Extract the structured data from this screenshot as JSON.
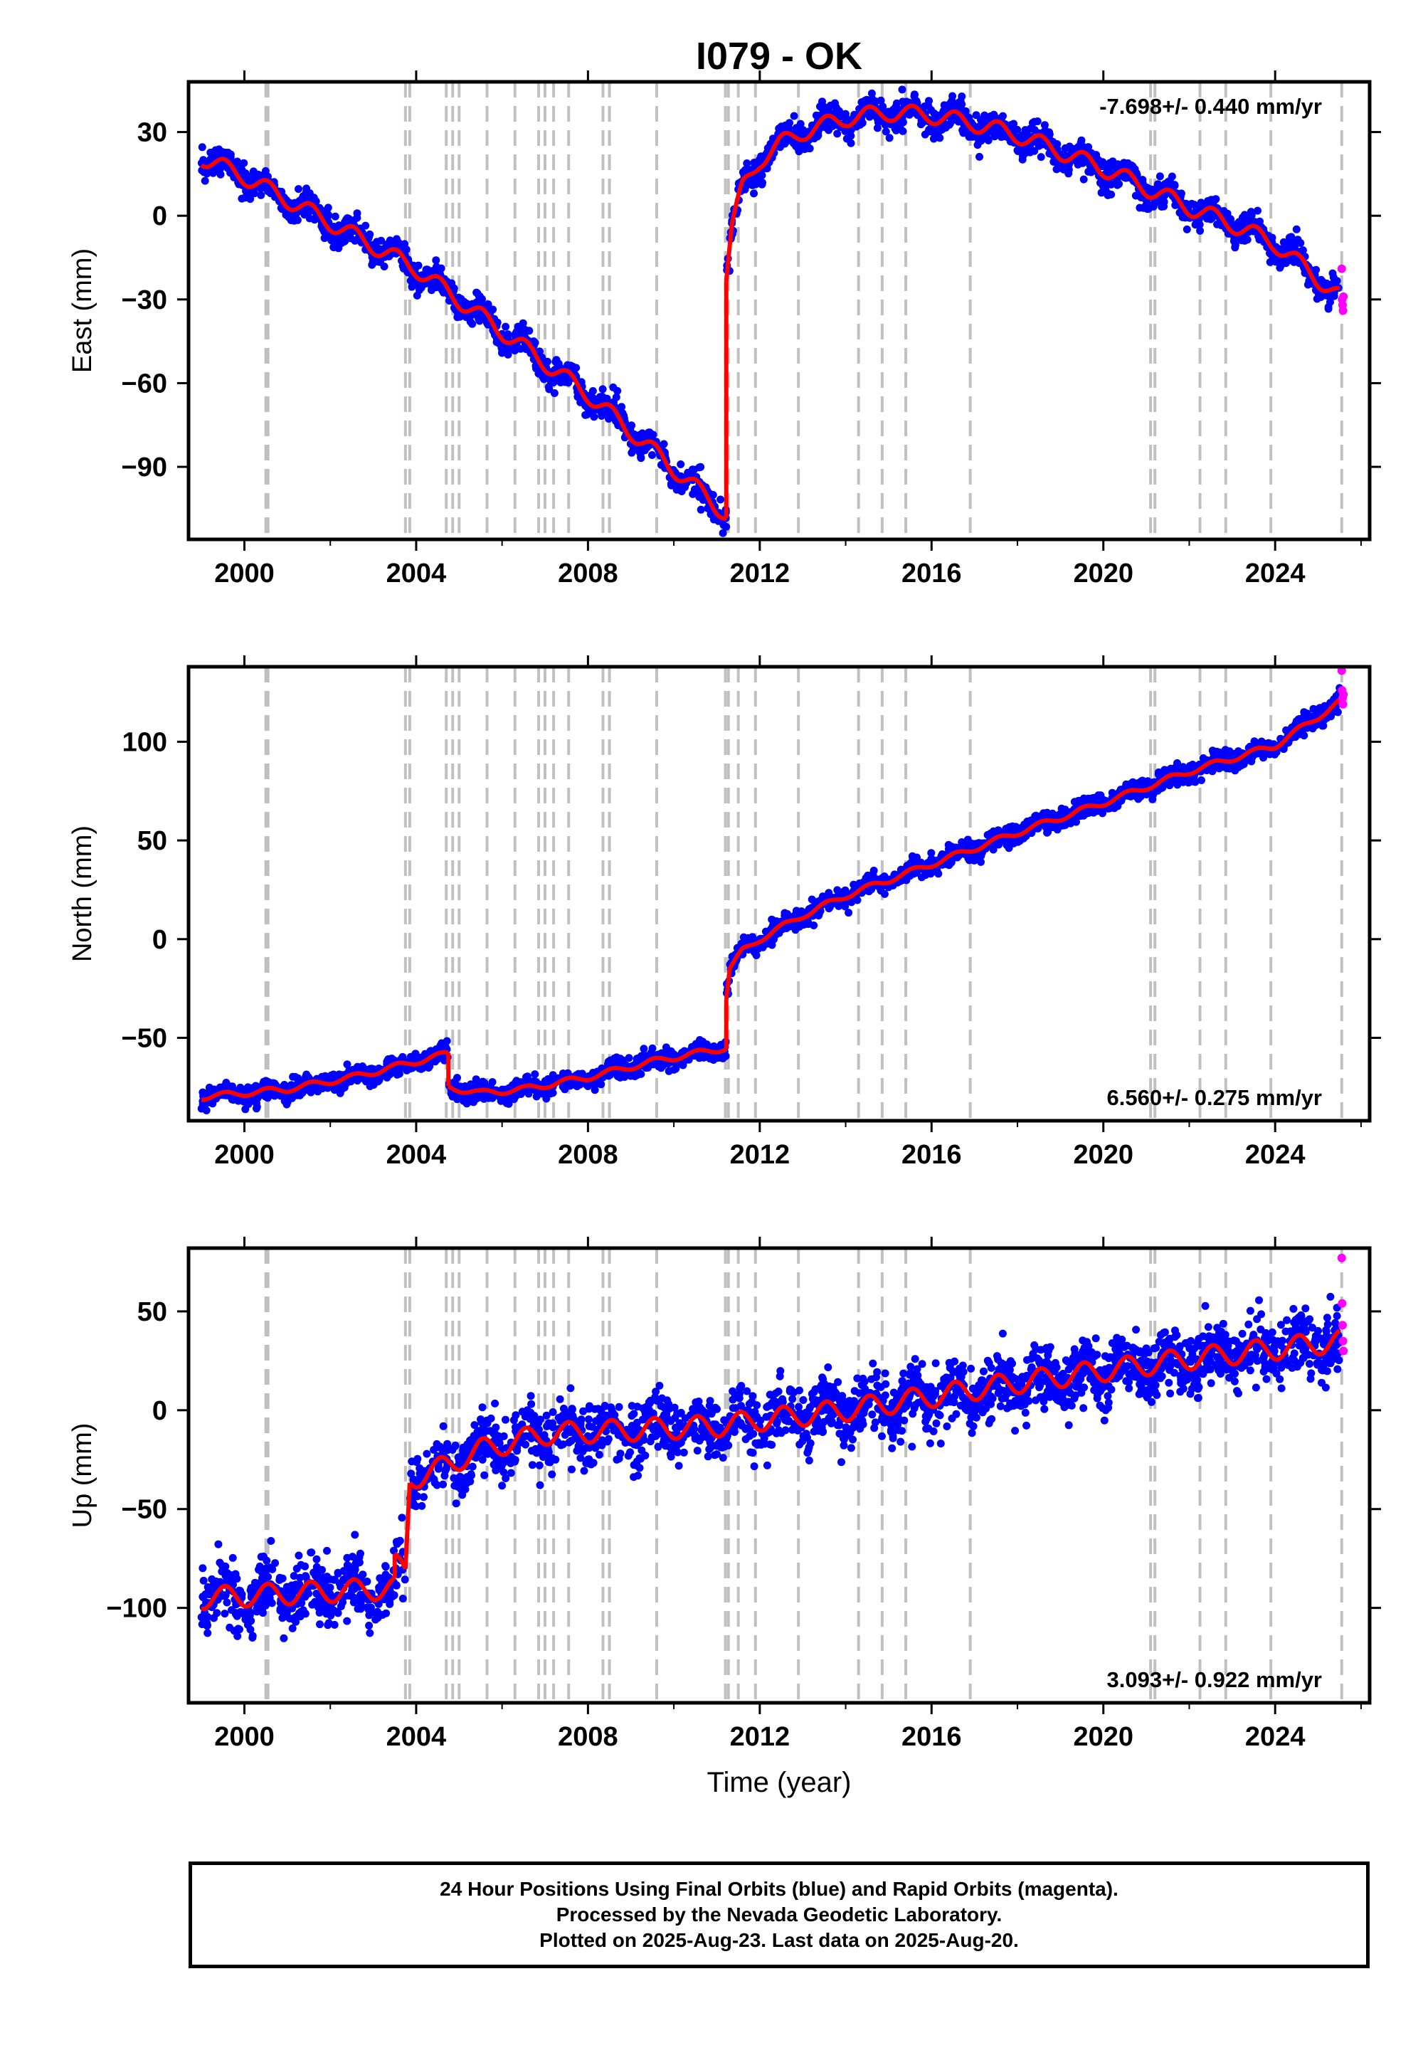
{
  "station_title": "I079 - OK",
  "colors": {
    "final_orbits": "#0000ff",
    "rapid_orbits": "#ff00ff",
    "model_fit": "#ff0000",
    "event_lines": "#c0c0c0",
    "frame": "#000000"
  },
  "footer": {
    "line1": "24 Hour Positions Using Final Orbits (blue) and Rapid Orbits (magenta).",
    "line2": "Processed by the Nevada Geodetic Laboratory.",
    "line3": "Plotted on 2025-Aug-23. Last data on 2025-Aug-20."
  },
  "chart_data": [
    {
      "type": "scatter",
      "component": "East",
      "ylabel": "East (mm)",
      "xlabel": "",
      "xlim": [
        1998.7,
        2026.2
      ],
      "ylim": [
        -116,
        48
      ],
      "xticks": [
        2000,
        2004,
        2008,
        2012,
        2016,
        2020,
        2024
      ],
      "yticks": [
        30,
        0,
        -30,
        -60,
        -90
      ],
      "ytick_labels": [
        "30",
        "0",
        "−30",
        "−60",
        "−90"
      ],
      "rate_label": "-7.698+/- 0.440 mm/yr",
      "rate_label_position": "top-right",
      "event_years": [
        2000.5,
        2000.55,
        2003.75,
        2003.85,
        2004.7,
        2004.85,
        2005.0,
        2005.65,
        2006.3,
        2006.85,
        2007.0,
        2007.2,
        2007.55,
        2008.35,
        2008.5,
        2009.6,
        2011.2,
        2011.27,
        2011.5,
        2011.9,
        2012.9,
        2014.3,
        2014.85,
        2015.4,
        2016.9,
        2021.1,
        2021.2,
        2022.25,
        2022.85,
        2023.9,
        2025.55
      ],
      "series": [
        {
          "name": "Final Orbits",
          "color": "#0000ff",
          "model": {
            "segments": [
              {
                "x": [
                  1999.0,
                  2000.0,
                  2004.0,
                  2008.0,
                  2011.22
                ],
                "y": [
                  21,
                  14,
                  -19,
                  -64,
                  -107
                ]
              },
              {
                "x": [
                  2011.22,
                  2011.35,
                  2011.6,
                  2012.0,
                  2012.5,
                  2013.0,
                  2014.0,
                  2015.0,
                  2016.0,
                  2017.0,
                  2018.0,
                  2019.0,
                  2020.0,
                  2021.0,
                  2022.0,
                  2023.0,
                  2024.0,
                  2025.5
                ],
                "y": [
                  -22,
                  -4,
                  10,
                  20,
                  26,
                  30,
                  35,
                  37,
                  36,
                  33,
                  29,
                  23,
                  17,
                  10,
                  3,
                  -3,
                  -10,
                  -29
                ]
              }
            ]
          },
          "scatter_sd": 2.5,
          "count": 2600
        },
        {
          "name": "Rapid Orbits",
          "color": "#ff00ff",
          "points": [
            [
              2025.55,
              -19
            ],
            [
              2025.56,
              -30
            ],
            [
              2025.57,
              -32
            ],
            [
              2025.58,
              -34
            ],
            [
              2025.59,
              -29
            ]
          ]
        },
        {
          "name": "Model fit",
          "color": "#ff0000",
          "amplitude": 3,
          "segments": [
            {
              "x": [
                1999.0,
                2000.0,
                2004.0,
                2008.0,
                2011.22
              ],
              "y": [
                21,
                14,
                -19,
                -64,
                -107
              ]
            },
            {
              "x": [
                2011.22,
                2011.35,
                2011.6,
                2012.0,
                2012.5,
                2013.0,
                2014.0,
                2015.0,
                2016.0,
                2017.0,
                2018.0,
                2019.0,
                2020.0,
                2021.0,
                2022.0,
                2023.0,
                2024.0,
                2025.5
              ],
              "y": [
                -22,
                -4,
                10,
                20,
                26,
                30,
                35,
                37,
                36,
                33,
                29,
                23,
                17,
                10,
                3,
                -3,
                -10,
                -29
              ]
            }
          ]
        }
      ]
    },
    {
      "type": "scatter",
      "component": "North",
      "ylabel": "North (mm)",
      "xlabel": "",
      "xlim": [
        1998.7,
        2026.2
      ],
      "ylim": [
        -92,
        138
      ],
      "xticks": [
        2000,
        2004,
        2008,
        2012,
        2016,
        2020,
        2024
      ],
      "yticks": [
        100,
        50,
        0,
        -50
      ],
      "ytick_labels": [
        "100",
        "50",
        "0",
        "−50"
      ],
      "rate_label": "6.560+/- 0.275 mm/yr",
      "rate_label_position": "bottom-right",
      "event_years": [
        2000.5,
        2000.55,
        2003.75,
        2003.85,
        2004.7,
        2004.85,
        2005.0,
        2005.65,
        2006.3,
        2006.85,
        2007.0,
        2007.2,
        2007.55,
        2008.35,
        2008.5,
        2009.6,
        2011.2,
        2011.27,
        2011.5,
        2011.9,
        2012.9,
        2014.3,
        2014.85,
        2015.4,
        2016.9,
        2021.1,
        2021.2,
        2022.25,
        2022.85,
        2023.9,
        2025.55
      ],
      "series": [
        {
          "name": "Final Orbits",
          "color": "#0000ff",
          "model": {
            "segments": [
              {
                "x": [
                  1999.0,
                  2001.0,
                  2002.5,
                  2004.0,
                  2004.75
                ],
                "y": [
                  -80,
                  -76,
                  -70,
                  -62,
                  -58
                ]
              },
              {
                "x": [
                  2004.75,
                  2005.5,
                  2006.5,
                  2008.0,
                  2009.5,
                  2011.22
                ],
                "y": [
                  -75,
                  -78,
                  -76,
                  -70,
                  -62,
                  -55
                ]
              },
              {
                "x": [
                  2011.22,
                  2011.3,
                  2011.6,
                  2012.0,
                  2013.0,
                  2014.0,
                  2015.0,
                  2016.0,
                  2018.0,
                  2020.0,
                  2022.0,
                  2024.0,
                  2025.5
                ],
                "y": [
                  -30,
                  -15,
                  -6,
                  0,
                  12,
                  22,
                  30,
                  38,
                  54,
                  69,
                  85,
                  98,
                  120
                ]
              }
            ]
          },
          "scatter_sd": 2.4,
          "count": 2600
        },
        {
          "name": "Rapid Orbits",
          "color": "#ff00ff",
          "points": [
            [
              2025.55,
              136
            ],
            [
              2025.56,
              126
            ],
            [
              2025.57,
              122
            ],
            [
              2025.58,
              119
            ],
            [
              2025.59,
              124
            ]
          ]
        },
        {
          "name": "Model fit",
          "color": "#ff0000",
          "amplitude": 1.5,
          "segments": [
            {
              "x": [
                1999.0,
                2001.0,
                2002.5,
                2004.0,
                2004.75
              ],
              "y": [
                -80,
                -76,
                -70,
                -62,
                -58
              ]
            },
            {
              "x": [
                2004.75,
                2005.5,
                2006.5,
                2008.0,
                2009.5,
                2011.22
              ],
              "y": [
                -75,
                -78,
                -76,
                -70,
                -62,
                -55
              ]
            },
            {
              "x": [
                2011.22,
                2011.3,
                2011.6,
                2012.0,
                2013.0,
                2014.0,
                2015.0,
                2016.0,
                2018.0,
                2020.0,
                2022.0,
                2024.0,
                2025.5
              ],
              "y": [
                -30,
                -15,
                -6,
                0,
                12,
                22,
                30,
                38,
                54,
                69,
                85,
                98,
                120
              ]
            }
          ]
        }
      ]
    },
    {
      "type": "scatter",
      "component": "Up",
      "ylabel": "Up (mm)",
      "xlabel": "Time (year)",
      "xlim": [
        1998.7,
        2026.2
      ],
      "ylim": [
        -148,
        82
      ],
      "xticks": [
        2000,
        2004,
        2008,
        2012,
        2016,
        2020,
        2024
      ],
      "yticks": [
        50,
        0,
        -50,
        -100
      ],
      "ytick_labels": [
        "50",
        "0",
        "−50",
        "−100"
      ],
      "rate_label": "3.093+/- 0.922 mm/yr",
      "rate_label_position": "bottom-right",
      "event_years": [
        2000.5,
        2000.55,
        2003.75,
        2003.85,
        2004.7,
        2004.85,
        2005.0,
        2005.65,
        2006.3,
        2006.85,
        2007.0,
        2007.2,
        2007.55,
        2008.35,
        2008.5,
        2009.6,
        2011.2,
        2011.27,
        2011.5,
        2011.9,
        2012.9,
        2014.3,
        2014.85,
        2015.4,
        2016.9,
        2021.1,
        2021.2,
        2022.25,
        2022.85,
        2023.9,
        2025.55
      ],
      "series": [
        {
          "name": "Final Orbits",
          "color": "#0000ff",
          "model": {
            "segments": [
              {
                "x": [
                  1999.0,
                  2003.5
                ],
                "y": [
                  -95,
                  -90
                ]
              },
              {
                "x": [
                  2003.5,
                  2003.75
                ],
                "y": [
                  -78,
                  -82
                ]
              },
              {
                "x": [
                  2003.85,
                  2004.5,
                  2005.5,
                  2007.0,
                  2009.0,
                  2011.0,
                  2012.0,
                  2014.0,
                  2016.0,
                  2018.0,
                  2020.0,
                  2022.0,
                  2024.0,
                  2025.5
                ],
                "y": [
                  -35,
                  -30,
                  -20,
                  -12,
                  -10,
                  -8,
                  -5,
                  0,
                  7,
                  14,
                  20,
                  26,
                  31,
                  35
                ]
              }
            ]
          },
          "scatter_sd": 7.5,
          "count": 2600
        },
        {
          "name": "Rapid Orbits",
          "color": "#ff00ff",
          "points": [
            [
              2025.55,
              77
            ],
            [
              2025.56,
              54
            ],
            [
              2025.57,
              43
            ],
            [
              2025.58,
              35
            ],
            [
              2025.59,
              30
            ]
          ]
        },
        {
          "name": "Model fit",
          "color": "#ff0000",
          "amplitude": 5.5,
          "segments": [
            {
              "x": [
                1999.0,
                2003.5
              ],
              "y": [
                -95,
                -90
              ]
            },
            {
              "x": [
                2003.5,
                2003.75
              ],
              "y": [
                -78,
                -82
              ]
            },
            {
              "x": [
                2003.85,
                2004.5,
                2005.5,
                2007.0,
                2009.0,
                2011.0,
                2012.0,
                2014.0,
                2016.0,
                2018.0,
                2020.0,
                2022.0,
                2024.0,
                2025.5
              ],
              "y": [
                -35,
                -30,
                -20,
                -12,
                -10,
                -8,
                -5,
                0,
                7,
                14,
                20,
                26,
                31,
                35
              ]
            }
          ]
        }
      ]
    }
  ]
}
